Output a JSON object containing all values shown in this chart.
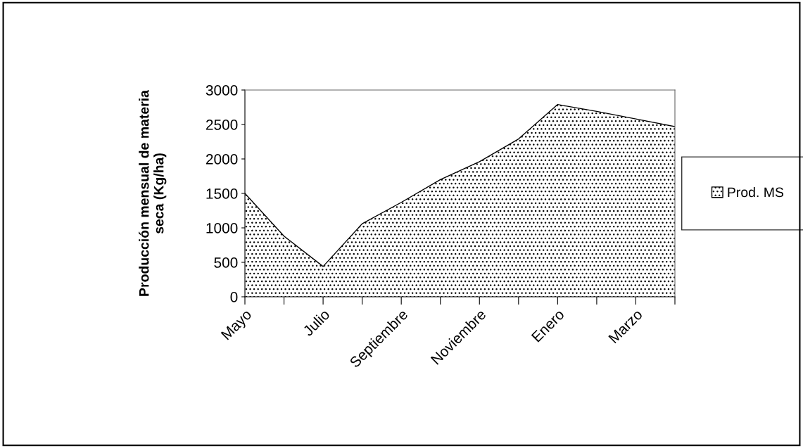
{
  "chart_data": {
    "type": "area",
    "ylabel": "Producción mensual de materia\nseca (Kg/ha)",
    "categories": [
      "Mayo",
      null,
      "Julio",
      null,
      "Septiembre",
      null,
      "Noviembre",
      null,
      "Enero",
      null,
      "Marzo",
      null
    ],
    "series": [
      {
        "name": "Prod. MS",
        "color": "#000000",
        "values": [
          1500,
          880,
          440,
          1060,
          1370,
          1700,
          1960,
          2290,
          2790,
          2690,
          2580,
          2470
        ]
      }
    ],
    "ylim": [
      0,
      3000
    ],
    "yticks": [
      0,
      500,
      1000,
      1500,
      2000,
      2500,
      3000
    ],
    "grid": false,
    "legend": "right"
  }
}
